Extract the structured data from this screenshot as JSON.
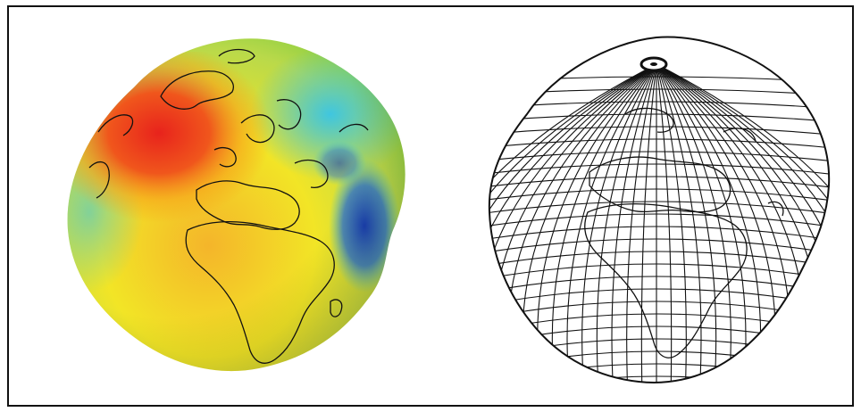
{
  "figure": {
    "panels": [
      {
        "id": "colored-geoid",
        "icon": "geoid-colored-globe-icon",
        "colors": {
          "high": "#e8231c",
          "mid_high": "#f7a21a",
          "mid": "#f2e526",
          "mid_low": "#7ecb3f",
          "low": "#3fc6e0",
          "lowest": "#1a3fb0",
          "coastline": "#111111"
        }
      },
      {
        "id": "wireframe-geoid",
        "icon": "geoid-wireframe-globe-icon",
        "colors": {
          "grid": "#111111",
          "fill": "#ffffff"
        }
      }
    ]
  }
}
